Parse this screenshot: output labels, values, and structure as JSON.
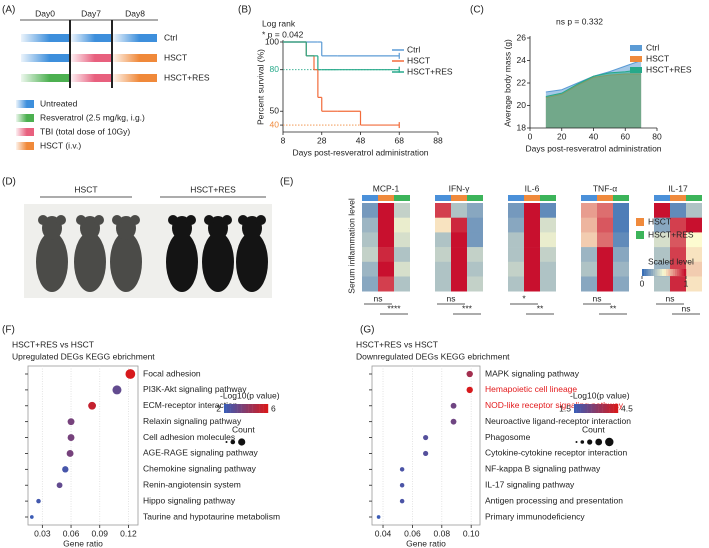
{
  "panel_labels": [
    "(A)",
    "(B)",
    "(C)",
    "(D)",
    "(E)",
    "(F)",
    "(G)"
  ],
  "schematic": {
    "days": [
      "Day0",
      "Day7",
      "Day8"
    ],
    "groups": [
      "Ctrl",
      "HSCT",
      "HSCT+RES"
    ],
    "legend": [
      "Untreated",
      "Resveratrol (2.5 mg/kg, i.g.)",
      "TBI (total dose of 10Gy)",
      "HSCT (i.v.)"
    ]
  },
  "photo": {
    "groups": [
      "HSCT",
      "HSCT+RES"
    ]
  },
  "chart_data": [
    {
      "type": "step",
      "annotations": [
        "Log rank",
        "* p = 0.042"
      ],
      "xlabel": "Days post-resveratrol administration",
      "ylabel": "Percent survival (%)",
      "x": [
        8,
        20,
        24,
        26,
        28,
        36,
        48,
        68
      ],
      "series": [
        {
          "name": "Ctrl",
          "color": "#5b9bd5",
          "values": [
            100,
            100,
            100,
            100,
            90,
            90,
            90,
            90
          ]
        },
        {
          "name": "HSCT",
          "color": "#f26b3a",
          "values": [
            100,
            90,
            80,
            60,
            50,
            50,
            40,
            40
          ]
        },
        {
          "name": "HSCT+RES",
          "color": "#26a98a",
          "values": [
            100,
            90,
            90,
            80,
            80,
            80,
            80,
            80
          ]
        }
      ],
      "xlim": [
        8,
        88
      ],
      "xticks": [
        8,
        28,
        48,
        68,
        88
      ],
      "ylim": [
        35,
        100
      ],
      "yticks": [
        40,
        50,
        80,
        100
      ],
      "ytick_styles": [
        {
          "color": "#f08a3c",
          "dotted": true
        },
        {
          "color": "#222222"
        },
        {
          "color": "#26a98a",
          "dotted": true
        },
        {
          "color": "#222222"
        }
      ],
      "legend": "upper right"
    },
    {
      "type": "area",
      "annotation": "ns p = 0.332",
      "xlabel": "Days post-resveratrol administration",
      "ylabel": "Average body mass (g)",
      "x": [
        10,
        20,
        30,
        40,
        50,
        60,
        70
      ],
      "series": [
        {
          "name": "Ctrl",
          "color": "#5b9bd5",
          "values": [
            21.2,
            21.4,
            22.0,
            22.6,
            23.0,
            23.5,
            24.0
          ]
        },
        {
          "name": "HSCT",
          "color": "#f08a3c",
          "values": [
            20.7,
            21.0,
            21.8,
            22.5,
            22.7,
            22.8,
            22.8
          ]
        },
        {
          "name": "HSCT+RES",
          "color": "#26a98a",
          "values": [
            20.8,
            21.1,
            21.9,
            22.6,
            22.9,
            23.0,
            23.2
          ]
        }
      ],
      "xlim": [
        0,
        80
      ],
      "xticks": [
        0,
        20,
        40,
        60,
        80
      ],
      "ylim": [
        18,
        26
      ],
      "yticks": [
        18,
        20,
        22,
        24,
        26
      ],
      "legend": "upper right"
    },
    {
      "type": "heatmap",
      "ylabel": "Serum inflammation level",
      "column_colors": [
        "#4a90d9",
        "#f08a3c",
        "#3cb45a"
      ],
      "groups": [
        {
          "name": "HSCT",
          "color": "#f08a3c"
        },
        {
          "name": "HSCT+RES",
          "color": "#3cb45a"
        }
      ],
      "colorscale": [
        "#3a6fb5",
        "#fdfbd0",
        "#c8102e"
      ],
      "colorbar_title": "Scaled level",
      "colorbar_ticks": [
        0,
        1
      ],
      "panels": [
        {
          "title": "MCP-1",
          "values": [
            [
              0.15,
              1,
              0.35
            ],
            [
              0.25,
              1,
              0.45
            ],
            [
              0.3,
              1,
              0.4
            ],
            [
              0.35,
              0.95,
              0.3
            ],
            [
              0.25,
              1,
              0.4
            ],
            [
              0.2,
              0.9,
              0.3
            ]
          ],
          "significance": [
            "ns",
            "****"
          ]
        },
        {
          "title": "IFN-γ",
          "values": [
            [
              0.9,
              0.3,
              0.2
            ],
            [
              0.55,
              0.95,
              0.15
            ],
            [
              0.3,
              1,
              0.15
            ],
            [
              0.35,
              1,
              0.35
            ],
            [
              0.3,
              1,
              0.3
            ],
            [
              0.3,
              1,
              0.35
            ]
          ],
          "significance": [
            "ns",
            "***"
          ]
        },
        {
          "title": "IL-6",
          "values": [
            [
              0.15,
              1,
              0.1
            ],
            [
              0.2,
              1,
              0.4
            ],
            [
              0.3,
              1,
              0.45
            ],
            [
              0.3,
              1,
              0.35
            ],
            [
              0.35,
              1,
              0.3
            ],
            [
              0.3,
              1,
              0.3
            ]
          ],
          "significance": [
            "*",
            "**"
          ]
        },
        {
          "title": "TNF-α",
          "values": [
            [
              0.7,
              0.8,
              0.05
            ],
            [
              0.65,
              0.85,
              0.05
            ],
            [
              0.6,
              0.8,
              0.1
            ],
            [
              0.25,
              1,
              0.2
            ],
            [
              0.3,
              1,
              0.25
            ],
            [
              0.2,
              1,
              0.2
            ]
          ],
          "significance": [
            "ns",
            "**"
          ]
        },
        {
          "title": "IL-17",
          "values": [
            [
              1,
              0.1,
              0.3
            ],
            [
              0.2,
              0.9,
              1
            ],
            [
              0.4,
              0.85,
              0.5
            ],
            [
              0.3,
              0.9,
              0.55
            ],
            [
              0.25,
              0.9,
              0.6
            ],
            [
              0.3,
              0.95,
              0.55
            ]
          ],
          "significance": [
            "ns",
            "ns"
          ]
        }
      ]
    },
    {
      "type": "bubble",
      "title": [
        "HSCT+RES vs HSCT",
        "Upregulated DEGs KEGG ebrichment"
      ],
      "xlabel": "Gene ratio",
      "categories": [
        "Focal adhesion",
        "PI3K-Akt signaling pathway",
        "ECM-receptor interaction",
        "Relaxin signaling pathway",
        "Cell adhesion molecules",
        "AGE-RAGE signaling pathway",
        "Chemokine signaling pathway",
        "Renin-angiotensin system",
        "Hippo signaling pathway",
        "Taurine and hypotaurine metabolism"
      ],
      "category_colors": [
        "#222222",
        "#222222",
        "#222222",
        "#222222",
        "#222222",
        "#222222",
        "#222222",
        "#222222",
        "#222222",
        "#222222"
      ],
      "x": [
        0.122,
        0.108,
        0.082,
        0.06,
        0.06,
        0.059,
        0.054,
        0.048,
        0.026,
        0.019
      ],
      "color_values": [
        6,
        3,
        5.5,
        3.5,
        3.5,
        3.5,
        2.3,
        3,
        2.2,
        2
      ],
      "sizes": [
        14,
        12,
        9,
        7,
        7,
        7,
        6,
        5,
        3,
        2
      ],
      "xlim": [
        0.015,
        0.13
      ],
      "xticks": [
        0.03,
        0.06,
        0.09,
        0.12
      ],
      "colorbar_title": "-Log10(p value)",
      "clim": [
        2,
        6
      ],
      "cticks": [
        2,
        6
      ],
      "colors": [
        "#3b5bb5",
        "#d7191c"
      ],
      "size_title": "Count"
    },
    {
      "type": "bubble",
      "title": [
        "HSCT+RES vs HSCT",
        "Downregulated DEGs KEGG ebrichment"
      ],
      "xlabel": "Gene ratio",
      "categories": [
        "MAPK signaling pathway",
        "Hemapoietic cell lineage",
        "NOD-like receptor signaling pathway",
        "Neuroactive ligand-receptor interaction",
        "Phagosome",
        "Cytokine-cytokine receptor interaction",
        "NF-kappa B signaling pathway",
        "IL-17 signaling pathway",
        "Antigen processing and presentation",
        "Primary immunodeficiency"
      ],
      "category_colors": [
        "#222222",
        "#e31a1c",
        "#e31a1c",
        "#222222",
        "#222222",
        "#222222",
        "#222222",
        "#222222",
        "#222222",
        "#222222"
      ],
      "x": [
        0.099,
        0.099,
        0.088,
        0.088,
        0.069,
        0.069,
        0.053,
        0.053,
        0.053,
        0.037
      ],
      "color_values": [
        3.5,
        4.5,
        2.5,
        2.5,
        2,
        2,
        1.8,
        1.8,
        1.8,
        1.5
      ],
      "sizes": [
        6,
        6,
        5,
        5,
        4,
        4,
        3,
        3,
        3,
        2
      ],
      "xlim": [
        0.0325,
        0.106
      ],
      "xticks": [
        0.04,
        0.06,
        0.08,
        {
          "value": 0.1,
          "label": "0.10"
        }
      ],
      "colorbar_title": "-Log10(p value)",
      "clim": [
        1.5,
        4.5
      ],
      "cticks": [
        1.5,
        4.5
      ],
      "colors": [
        "#3b5bb5",
        "#d7191c"
      ],
      "size_title": "Count"
    }
  ]
}
